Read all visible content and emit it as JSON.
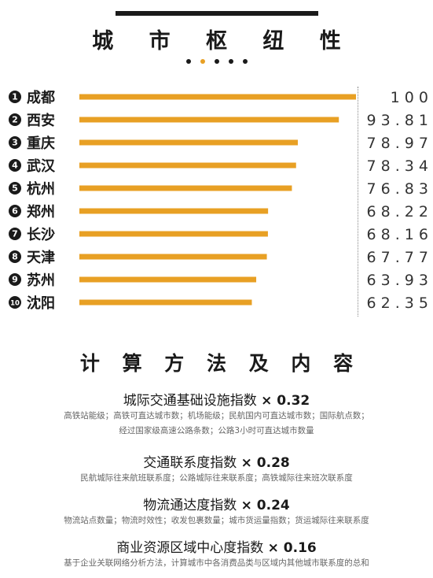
{
  "header": {
    "title": "城 市 枢 纽 性"
  },
  "pager": {
    "count": 5,
    "active": 1
  },
  "colors": {
    "bar": "#e8a024",
    "text": "#1a1a1a",
    "accent": "#e8a024",
    "muted": "#666666"
  },
  "chart_data": {
    "type": "bar",
    "orientation": "horizontal",
    "categories": [
      "成都",
      "西安",
      "重庆",
      "武汉",
      "杭州",
      "郑州",
      "长沙",
      "天津",
      "苏州",
      "沈阳"
    ],
    "values": [
      100,
      93.81,
      78.97,
      78.34,
      76.83,
      68.22,
      68.16,
      67.77,
      63.93,
      62.35
    ],
    "value_labels": [
      "1 0 0",
      "9 3 . 8 1",
      "7 8 . 9 7",
      "7 8 . 3 4",
      "7 6 . 8 3",
      "6 8 . 2 2",
      "6 8 . 1 6",
      "6 7 . 7 7",
      "6 3 . 9 3",
      "6 2 . 3 5"
    ],
    "xlim": [
      0,
      100
    ],
    "grid": false,
    "legend": "none"
  },
  "section2": {
    "title": "计 算 方 法 及 内 容"
  },
  "methods": [
    {
      "name": "城际交通基础设施指数",
      "mult": "× 0.32",
      "desc": [
        "高铁站能级；高铁可直达城市数；机场能级；民航国内可直达城市数；国际航点数；",
        "经过国家级高速公路条数；公路3小时可直达城市数量"
      ]
    },
    {
      "name": "交通联系度指数",
      "mult": "× 0.28",
      "desc": [
        "民航城际往来航班联系度；公路城际往来联系度；高铁城际往来班次联系度"
      ]
    },
    {
      "name": "物流通达度指数",
      "mult": "× 0.24",
      "desc": [
        "物流站点数量；物流时效性；收发包裹数量；城市货运量指数；货运城际往来联系度"
      ]
    },
    {
      "name": "商业资源区域中心度指数",
      "mult": "× 0.16",
      "desc": [
        "基于企业关联网络分析方法，计算城市中各消费品类与区域内其他城市联系度的总和"
      ]
    }
  ]
}
